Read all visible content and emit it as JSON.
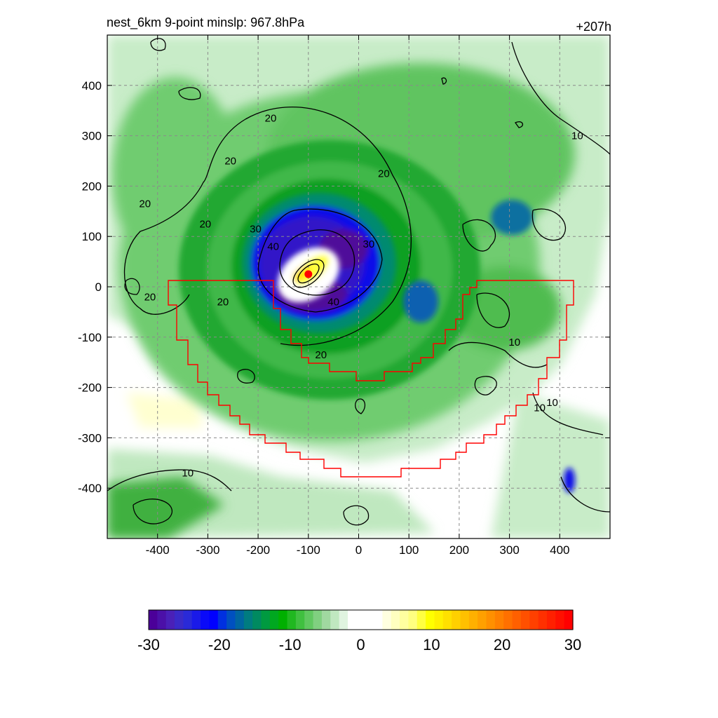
{
  "header": {
    "title_left": "nest_6km  9-point minslp: 967.8hPa",
    "title_right": "+207h"
  },
  "chart_data": {
    "type": "heatmap",
    "title": "nest_6km  9-point minslp: 967.8hPa",
    "subtitle": "+207h",
    "xlim": [
      -500,
      500
    ],
    "ylim": [
      -500,
      500
    ],
    "xticks": [
      -400,
      -300,
      -200,
      -100,
      0,
      100,
      200,
      300,
      400
    ],
    "yticks": [
      400,
      300,
      200,
      100,
      0,
      -100,
      -200,
      -300,
      -400
    ],
    "grid": true,
    "center_marker": {
      "x": -100,
      "y": 25,
      "color": "#ff0000"
    },
    "contour_labels": [
      {
        "text": "20",
        "x": -175,
        "y": 335
      },
      {
        "text": "20",
        "x": -255,
        "y": 250
      },
      {
        "text": "20",
        "x": -425,
        "y": 165
      },
      {
        "text": "20",
        "x": -305,
        "y": 125
      },
      {
        "text": "20",
        "x": -415,
        "y": -20
      },
      {
        "text": "20",
        "x": -270,
        "y": -30
      },
      {
        "text": "20",
        "x": 50,
        "y": 225
      },
      {
        "text": "20",
        "x": -75,
        "y": -135
      },
      {
        "text": "30",
        "x": -205,
        "y": 115
      },
      {
        "text": "30",
        "x": 20,
        "y": 85
      },
      {
        "text": "40",
        "x": -170,
        "y": 80
      },
      {
        "text": "40",
        "x": -50,
        "y": -30
      },
      {
        "text": "10",
        "x": 435,
        "y": 300
      },
      {
        "text": "10",
        "x": 310,
        "y": -110
      },
      {
        "text": "10",
        "x": 385,
        "y": -230
      },
      {
        "text": "10",
        "x": 360,
        "y": -240
      },
      {
        "text": "10",
        "x": -340,
        "y": -370
      }
    ],
    "colorbar": {
      "min": -30,
      "max": 30,
      "tick_labels": [
        "-30",
        "-20",
        "-10",
        "0",
        "10",
        "20",
        "30"
      ],
      "colors": [
        "#4b0099",
        "#4b10a8",
        "#4a20b8",
        "#3a2ac8",
        "#2a2ad8",
        "#1a1ae8",
        "#0a0af8",
        "#0000ff",
        "#0030e0",
        "#0050c0",
        "#0065a0",
        "#007c80",
        "#008a60",
        "#009a40",
        "#00a820",
        "#00b000",
        "#20b820",
        "#40c040",
        "#60c860",
        "#80d080",
        "#a0d8a0",
        "#c0e8c0",
        "#e0f4e0",
        "#ffffff",
        "#ffffff",
        "#ffffff",
        "#ffffff",
        "#ffffe0",
        "#ffffc0",
        "#ffffa0",
        "#ffff80",
        "#ffff40",
        "#ffff00",
        "#fff000",
        "#ffe000",
        "#ffd000",
        "#ffc000",
        "#ffb000",
        "#ffa000",
        "#ff9000",
        "#ff8000",
        "#ff7000",
        "#ff6000",
        "#ff5000",
        "#ff4000",
        "#ff3000",
        "#ff2000",
        "#ff1000",
        "#ff0000"
      ]
    },
    "palette": {
      "outer_green": "#c8ecc8",
      "mid_green": "#50c050",
      "deep_green": "#10a020",
      "teal": "#008a70",
      "blue": "#1010e8",
      "violet": "#50109a",
      "yellow": "#ffff40",
      "land_line": "#ff0000",
      "contour": "#000000"
    }
  }
}
